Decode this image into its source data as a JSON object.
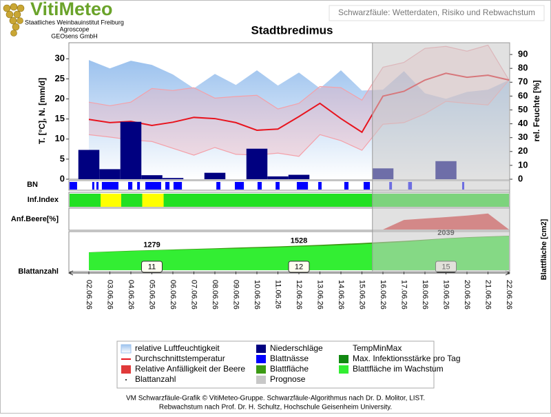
{
  "header": {
    "logo": "VitiMeteo",
    "lines": [
      "Staatliches Weinbauinstitut Freiburg",
      "Agroscope",
      "GEOsens GmbH"
    ],
    "subtitle": "Schwarzfäule: Wetterdaten, Risiko und Rebwachstum"
  },
  "chart_data": {
    "type": "combo",
    "title": "Stadtbredimus",
    "categories": [
      "02.06.26",
      "03.06.26",
      "04.06.26",
      "05.06.26",
      "06.06.26",
      "07.06.26",
      "08.06.26",
      "09.06.26",
      "10.06.26",
      "11.06.26",
      "12.06.26",
      "13.06.26",
      "14.06.26",
      "15.06.26",
      "16.06.26",
      "17.06.26",
      "18.06.26",
      "19.06.26",
      "20.06.26",
      "21.06.26",
      "22.06.26"
    ],
    "ylabel": "T. [°C], N. [mm/d]",
    "y2label": "rel. Feuchte [%]",
    "ylim": [
      0,
      34
    ],
    "yticks": [
      0,
      5,
      10,
      15,
      20,
      25,
      30
    ],
    "y2lim": [
      0,
      98.5
    ],
    "y2ticks": [
      0,
      10,
      20,
      30,
      40,
      50,
      60,
      70,
      80,
      90
    ],
    "series": [
      {
        "name": "relative Luftfeuchtigkeit",
        "color": "#a4c6ee",
        "kind": "area",
        "axis": "y2",
        "values": [
          86,
          80,
          85.5,
          82.5,
          75.6,
          65.6,
          76,
          68,
          78.6,
          67.6,
          77,
          65.6,
          78.6,
          64,
          64.6,
          78,
          62,
          58,
          63,
          64.6,
          71.6
        ]
      },
      {
        "name": "TempMinMax",
        "color": "#f4a0a8",
        "kind": "band",
        "high": [
          19.2,
          18.3,
          19.2,
          22.6,
          22.1,
          22.8,
          20.2,
          20.6,
          20.9,
          17.5,
          18.9,
          23.1,
          22.8,
          19.7,
          27.9,
          29.1,
          32.6,
          33.1,
          31.9,
          33.4,
          24.7
        ],
        "low": [
          11.1,
          10.5,
          9.8,
          9.4,
          7.7,
          6.0,
          7.9,
          6.2,
          6.0,
          6.5,
          5.7,
          11.1,
          9.6,
          7.2,
          13.7,
          14.1,
          16.3,
          19.4,
          18.9,
          18.5,
          24.7
        ]
      },
      {
        "name": "Durchschnittstemperatur",
        "color": "#e8141e",
        "kind": "line",
        "values": [
          14.9,
          14.1,
          14.4,
          13.4,
          14.2,
          15.4,
          15.1,
          14.1,
          12.2,
          12.5,
          15.6,
          18.9,
          15.1,
          11.7,
          20.7,
          21.9,
          24.7,
          26.4,
          25.4,
          25.9,
          24.7
        ]
      },
      {
        "name": "Niederschläge",
        "color": "#000080",
        "kind": "bar",
        "values": [
          7.3,
          2.5,
          14.3,
          1.0,
          0.3,
          0,
          1.6,
          0,
          7.6,
          0.7,
          1.1,
          0,
          0,
          0,
          2.7,
          0,
          0,
          4.5,
          0,
          0,
          0
        ]
      }
    ],
    "prognosis": {
      "name": "Prognose",
      "color": "#c8c8c8",
      "from": 14
    },
    "bn": {
      "label": "BN",
      "name": "Blattnässe",
      "color": "#0000ff",
      "start": [
        -0.92,
        0.16,
        0.36,
        0.62,
        1.87,
        2.3,
        2.69,
        3.64,
        4.03,
        6.07,
        6.95,
        8.03,
        8.89,
        9.9,
        10.92,
        12.16,
        13.08,
        14.3,
        15.2,
        17.77
      ],
      "end": [
        -0.56,
        0.26,
        0.46,
        1.41,
        2.07,
        2.43,
        3.44,
        3.84,
        4.43,
        6.26,
        7.38,
        8.23,
        9.08,
        10.43,
        11.08,
        12.36,
        13.38,
        14.43,
        15.38,
        17.87
      ]
    },
    "inf": {
      "label": "Inf.Index",
      "color": "#22e022",
      "alert_color": "#ffff00",
      "alert_start": [
        0.56,
        2.54
      ],
      "alert_end": [
        1.54,
        3.56
      ]
    },
    "anf": {
      "label": "Anf.Beere[%]",
      "name": "Relative Anfälligkeit der Beere",
      "color": "#e03a3a",
      "ylim": [
        0,
        100
      ],
      "values": [
        0,
        0,
        0,
        0,
        0,
        0,
        0,
        0,
        0,
        0,
        0,
        0,
        0,
        0,
        0,
        48,
        55,
        62,
        70,
        80,
        0
      ]
    },
    "leaf": {
      "label": "Blattfläche [cm2]",
      "ylim": [
        0,
        2500
      ],
      "series": [
        {
          "name": "Blattfläche",
          "color": "#3c9a14",
          "values": [
            1160,
            1210,
            1260,
            1300,
            1340,
            1380,
            1420,
            1460,
            1500,
            1540,
            1590,
            1640,
            1700,
            1760,
            1830,
            1900,
            1980,
            2070,
            2140,
            2190,
            2230
          ]
        },
        {
          "name": "Blattfläche im Wachstum",
          "color": "#33ee33",
          "values": [
            1150,
            1190,
            1235,
            1279,
            1310,
            1340,
            1370,
            1400,
            1440,
            1480,
            1528,
            1570,
            1620,
            1680,
            1750,
            1830,
            1930,
            2039,
            2100,
            2150,
            2200
          ]
        }
      ],
      "labelled": [
        3,
        10,
        17
      ]
    },
    "count": {
      "name": "Blattanzahl",
      "values": [
        null,
        null,
        null,
        11,
        null,
        null,
        null,
        null,
        null,
        null,
        12,
        null,
        null,
        null,
        null,
        null,
        null,
        15,
        null,
        null,
        null
      ]
    },
    "legend_items": [
      {
        "name": "Max. Infektionsstärke pro Tag",
        "color": "#118811"
      }
    ]
  },
  "footer": {
    "lines": [
      "VM Schwarzfäule-Grafik © VitiMeteo-Gruppe. Schwarzfäule-Algorithmus nach Dr. D. Molitor, LIST.",
      "Rebwachstum nach Prof. Dr. H. Schultz, Hochschule Geisenheim University."
    ]
  }
}
